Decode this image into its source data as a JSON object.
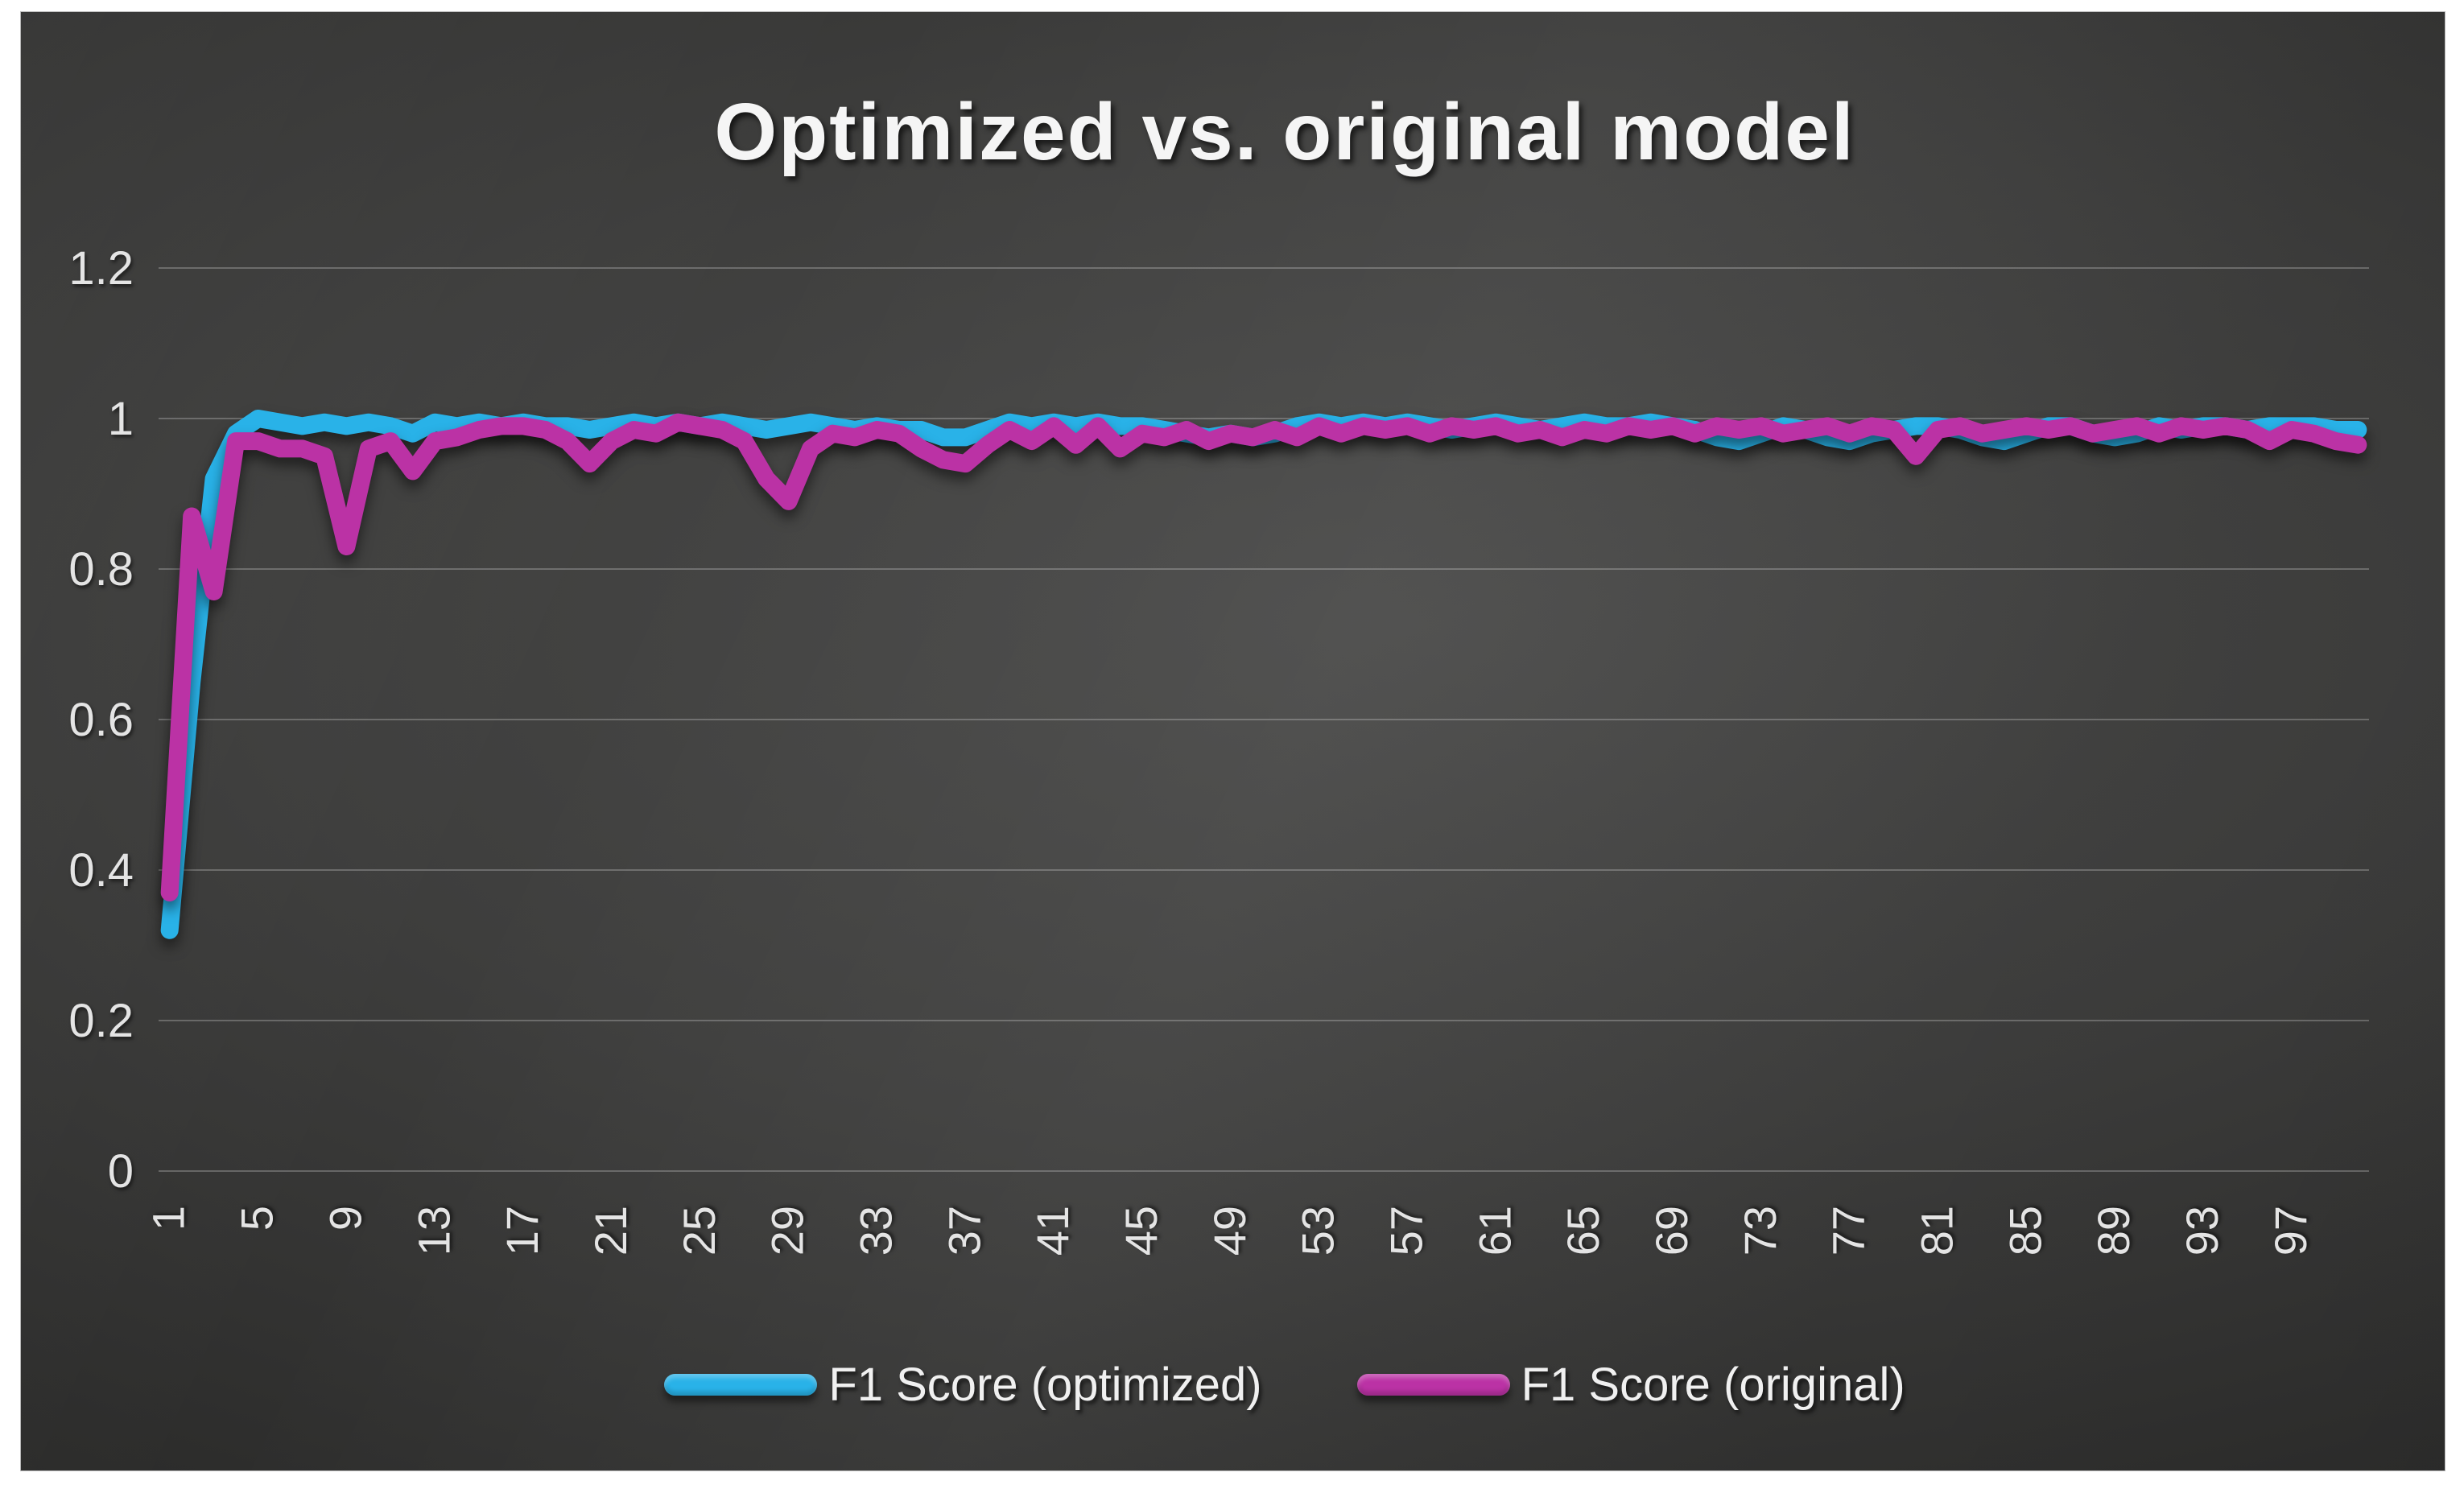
{
  "chart_data": {
    "type": "line",
    "title": "Optimized vs. original model",
    "xlabel": "",
    "ylabel": "",
    "x_range": [
      1,
      100
    ],
    "x_tick_labels": [
      "1",
      "5",
      "9",
      "13",
      "17",
      "21",
      "25",
      "29",
      "33",
      "37",
      "41",
      "45",
      "49",
      "53",
      "57",
      "61",
      "65",
      "69",
      "73",
      "77",
      "81",
      "85",
      "89",
      "93",
      "97"
    ],
    "y_tick_labels": [
      "0",
      "0.2",
      "0.4",
      "0.6",
      "0.8",
      "1",
      "1.2"
    ],
    "y_tick_values": [
      0,
      0.2,
      0.4,
      0.6,
      0.8,
      1,
      1.2
    ],
    "ylim": [
      0,
      1.2
    ],
    "grid": true,
    "legend_position": "bottom",
    "theme": "dark",
    "gridline_color": "rgba(255,255,255,0.24)",
    "series": [
      {
        "name": "F1 Score (optimized)",
        "color": "#29B2E8",
        "values": [
          0.32,
          0.65,
          0.92,
          0.98,
          1.0,
          0.995,
          0.99,
          0.995,
          0.99,
          0.995,
          0.99,
          0.98,
          0.995,
          0.99,
          0.995,
          0.99,
          0.995,
          0.99,
          0.99,
          0.985,
          0.99,
          0.995,
          0.99,
          0.995,
          0.99,
          0.995,
          0.99,
          0.985,
          0.99,
          0.995,
          0.99,
          0.985,
          0.99,
          0.985,
          0.985,
          0.975,
          0.975,
          0.985,
          0.995,
          0.99,
          0.995,
          0.99,
          0.995,
          0.99,
          0.99,
          0.985,
          0.98,
          0.975,
          0.98,
          0.975,
          0.98,
          0.99,
          0.995,
          0.99,
          0.995,
          0.99,
          0.995,
          0.99,
          0.985,
          0.99,
          0.995,
          0.99,
          0.985,
          0.99,
          0.995,
          0.99,
          0.99,
          0.995,
          0.99,
          0.985,
          0.975,
          0.97,
          0.98,
          0.99,
          0.985,
          0.975,
          0.97,
          0.98,
          0.985,
          0.99,
          0.99,
          0.985,
          0.975,
          0.97,
          0.98,
          0.99,
          0.99,
          0.98,
          0.975,
          0.98,
          0.99,
          0.985,
          0.99,
          0.99,
          0.985,
          0.99,
          0.99,
          0.99,
          0.985,
          0.985
        ]
      },
      {
        "name": "F1 Score (original)",
        "color": "#BB32A5",
        "values": [
          0.37,
          0.87,
          0.77,
          0.97,
          0.97,
          0.96,
          0.96,
          0.95,
          0.83,
          0.96,
          0.97,
          0.93,
          0.97,
          0.975,
          0.985,
          0.99,
          0.99,
          0.985,
          0.97,
          0.94,
          0.97,
          0.985,
          0.98,
          0.995,
          0.99,
          0.985,
          0.97,
          0.92,
          0.89,
          0.96,
          0.98,
          0.975,
          0.985,
          0.98,
          0.96,
          0.945,
          0.94,
          0.965,
          0.985,
          0.97,
          0.99,
          0.965,
          0.99,
          0.96,
          0.98,
          0.975,
          0.985,
          0.97,
          0.98,
          0.975,
          0.985,
          0.975,
          0.99,
          0.98,
          0.99,
          0.985,
          0.99,
          0.98,
          0.99,
          0.985,
          0.99,
          0.98,
          0.985,
          0.975,
          0.985,
          0.98,
          0.99,
          0.985,
          0.99,
          0.98,
          0.99,
          0.985,
          0.99,
          0.98,
          0.985,
          0.99,
          0.98,
          0.99,
          0.985,
          0.95,
          0.985,
          0.99,
          0.98,
          0.985,
          0.99,
          0.985,
          0.99,
          0.98,
          0.985,
          0.99,
          0.98,
          0.99,
          0.985,
          0.99,
          0.985,
          0.97,
          0.985,
          0.98,
          0.97,
          0.965
        ]
      }
    ]
  }
}
